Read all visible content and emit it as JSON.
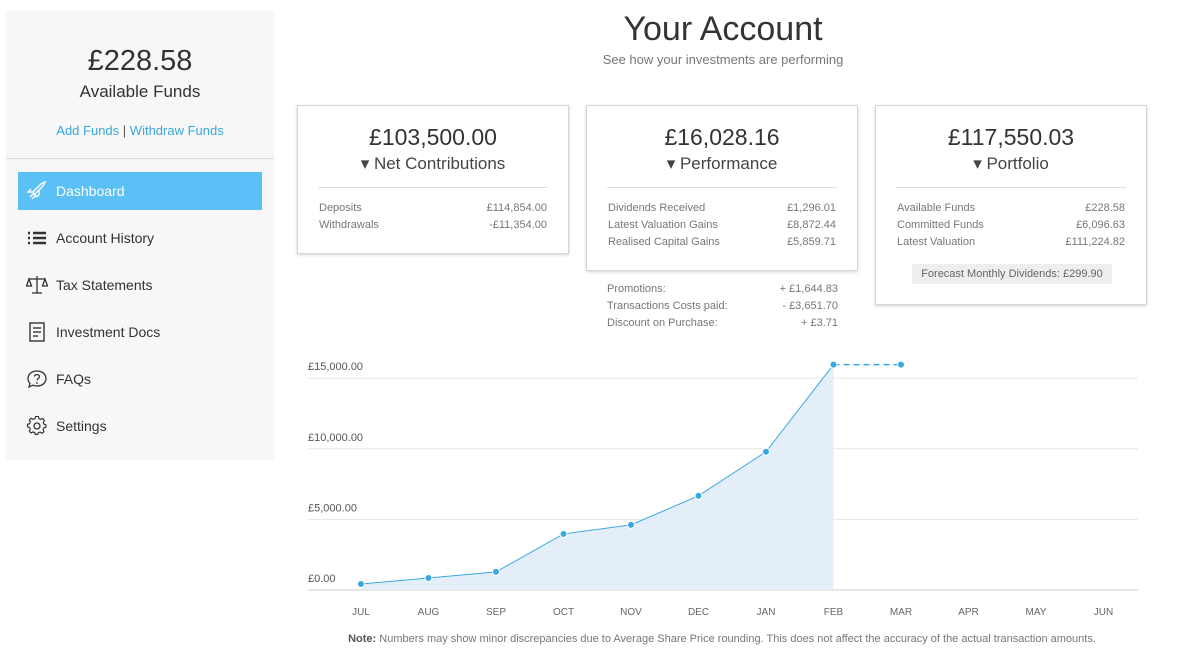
{
  "sidebar": {
    "balance": "£228.58",
    "balance_label": "Available Funds",
    "links": [
      "Add Funds",
      "Withdraw Funds"
    ],
    "link_separator": "|",
    "nav": [
      "Dashboard",
      "Account History",
      "Tax Statements",
      "Investment Docs",
      "FAQs",
      "Settings"
    ]
  },
  "header": {
    "title": "Your Account",
    "subtitle": "See how your investments are performing"
  },
  "cards": [
    {
      "amount": "£103,500.00",
      "label": "▾ Net Contributions",
      "rows": [
        [
          "Deposits",
          "£114,854.00"
        ],
        [
          "Withdrawals",
          "-£11,354.00"
        ]
      ]
    },
    {
      "amount": "£16,028.16",
      "label": "▾ Performance",
      "rows": [
        [
          "Dividends Received",
          "£1,296.01"
        ],
        [
          "Latest Valuation Gains",
          "£8,872.44"
        ],
        [
          "Realised Capital Gains",
          "£5,859.71"
        ]
      ],
      "extra_rows": [
        [
          "Promotions:",
          "+ £1,644.83"
        ],
        [
          "Transactions Costs paid:",
          "- £3,651.70"
        ],
        [
          "Discount on Purchase:",
          "+ £3.71"
        ]
      ]
    },
    {
      "amount": "£117,550.03",
      "label": "▾ Portfolio",
      "rows": [
        [
          "Available Funds",
          "£228.58"
        ],
        [
          "Committed Funds",
          "£6,096.63"
        ],
        [
          "Latest Valuation",
          "£111,224.82"
        ]
      ],
      "badge": "Forecast Monthly Dividends: £299.90"
    }
  ],
  "chart_data": {
    "type": "area",
    "categories": [
      "JUL",
      "AUG",
      "SEP",
      "OCT",
      "NOV",
      "DEC",
      "JAN",
      "FEB",
      "MAR",
      "APR",
      "MAY",
      "JUN"
    ],
    "series": [
      {
        "color": "#3aa8e0",
        "fill": "#e3eef9",
        "values": [
          425,
          850,
          1280,
          3970,
          4610,
          6670,
          9790,
          15960,
          null,
          null,
          null,
          null
        ]
      },
      {
        "color": "#3aa8e0",
        "dashed": true,
        "values": [
          null,
          null,
          null,
          null,
          null,
          null,
          null,
          15960,
          15960,
          null,
          null,
          null
        ]
      }
    ],
    "ylim": [
      0,
      16500
    ],
    "yticks": [
      {
        "value": 0,
        "label": "£0.00"
      },
      {
        "value": 5000,
        "label": "£5,000.00"
      },
      {
        "value": 10000,
        "label": "£10,000.00"
      },
      {
        "value": 15000,
        "label": "£15,000.00"
      }
    ],
    "grid": true
  },
  "note": {
    "label": "Note:",
    "text": "Numbers may show minor discrepancies due to Average Share Price rounding. This does not affect the accuracy of the actual transaction amounts."
  }
}
